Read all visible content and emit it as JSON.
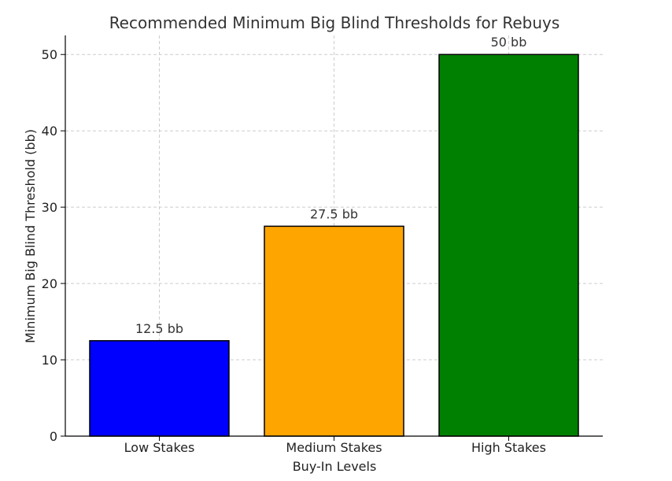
{
  "chart_data": {
    "type": "bar",
    "title": "Recommended Minimum Big Blind Thresholds for Rebuys",
    "xlabel": "Buy-In Levels",
    "ylabel": "Minimum Big Blind Threshold (bb)",
    "categories": [
      "Low Stakes",
      "Medium Stakes",
      "High Stakes"
    ],
    "values": [
      12.5,
      27.5,
      50
    ],
    "data_labels": [
      "12.5 bb",
      "27.5 bb",
      "50 bb"
    ],
    "colors": [
      "#0000ff",
      "#ffa500",
      "#008000"
    ],
    "ylim": [
      0,
      52.5
    ],
    "yticks": [
      0,
      10,
      20,
      30,
      40,
      50
    ],
    "grid": true,
    "legend": false
  }
}
